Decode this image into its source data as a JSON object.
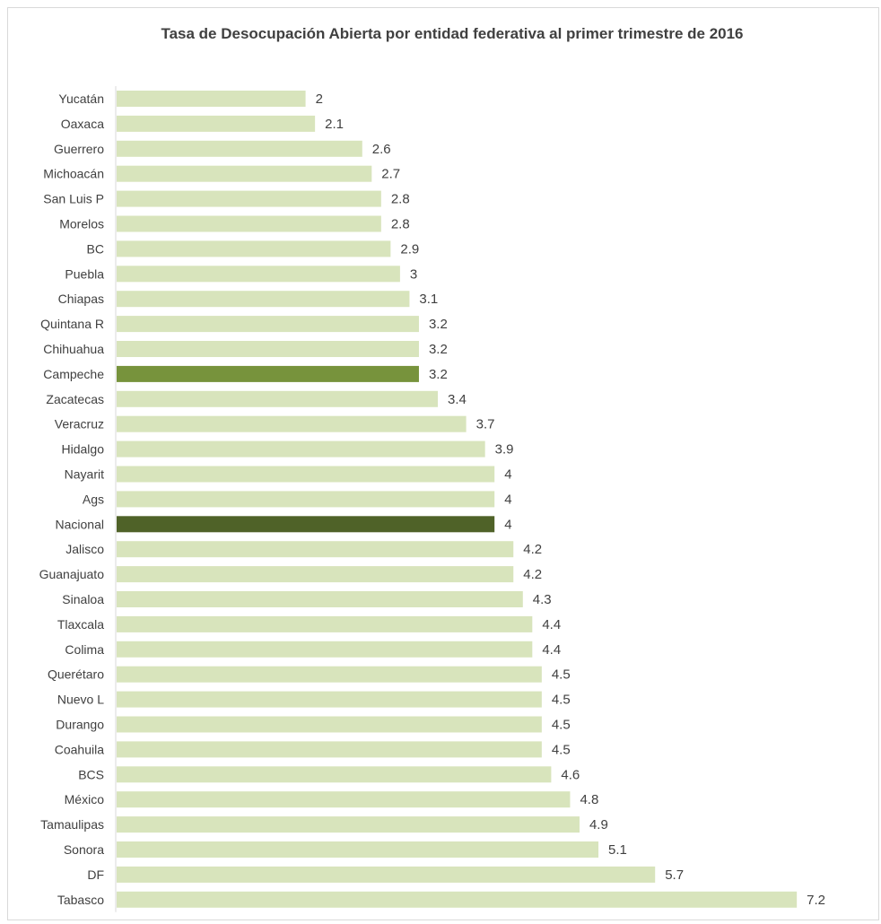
{
  "chart_data": {
    "type": "bar",
    "orientation": "horizontal",
    "title": "Tasa de Desocupación Abierta por entidad federativa al primer trimestre de 2016",
    "xlabel": "",
    "ylabel": "",
    "xlim": [
      0,
      7.2
    ],
    "grid": false,
    "legend": "none",
    "data_labels": true,
    "categories": [
      "Yucatán",
      "Oaxaca",
      "Guerrero",
      "Michoacán",
      "San Luis P",
      "Morelos",
      "BC",
      "Puebla",
      "Chiapas",
      "Quintana R",
      "Chihuahua",
      "Campeche",
      "Zacatecas",
      "Veracruz",
      "Hidalgo",
      "Nayarit",
      "Ags",
      "Nacional",
      "Jalisco",
      "Guanajuato",
      "Sinaloa",
      "Tlaxcala",
      "Colima",
      "Querétaro",
      "Nuevo L",
      "Durango",
      "Coahuila",
      "BCS",
      "México",
      "Tamaulipas",
      "Sonora",
      "DF",
      "Tabasco"
    ],
    "values": [
      2,
      2.1,
      2.6,
      2.7,
      2.8,
      2.8,
      2.9,
      3,
      3.1,
      3.2,
      3.2,
      3.2,
      3.4,
      3.7,
      3.9,
      4,
      4,
      4,
      4.2,
      4.2,
      4.3,
      4.4,
      4.4,
      4.5,
      4.5,
      4.5,
      4.5,
      4.6,
      4.8,
      4.9,
      5.1,
      5.7,
      7.2
    ],
    "value_labels": [
      "2",
      "2.1",
      "2.6",
      "2.7",
      "2.8",
      "2.8",
      "2.9",
      "3",
      "3.1",
      "3.2",
      "3.2",
      "3.2",
      "3.4",
      "3.7",
      "3.9",
      "4",
      "4",
      "4",
      "4.2",
      "4.2",
      "4.3",
      "4.4",
      "4.4",
      "4.5",
      "4.5",
      "4.5",
      "4.5",
      "4.6",
      "4.8",
      "4.9",
      "5.1",
      "5.7",
      "7.2"
    ],
    "colors": {
      "default": "#d8e4bc",
      "highlight": {
        "Campeche": "#77933c",
        "Nacional": "#4f6228"
      },
      "axis": "#d9d9d9"
    }
  }
}
